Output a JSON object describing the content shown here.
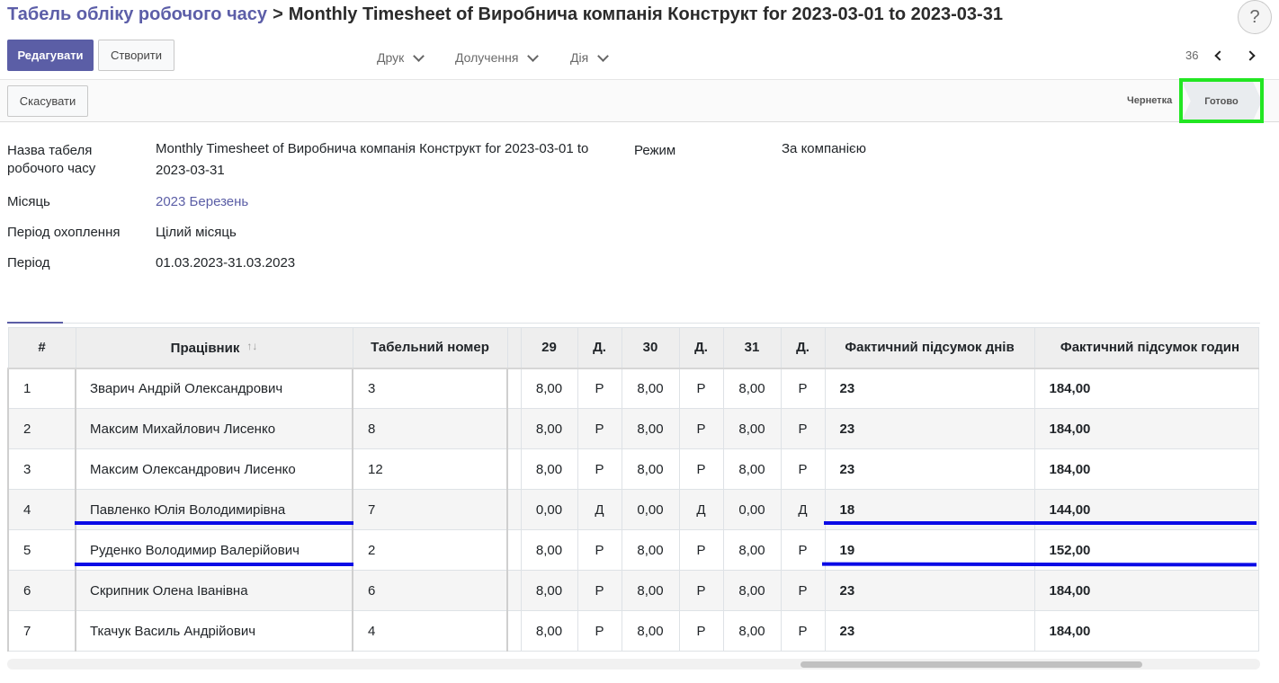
{
  "breadcrumb": {
    "parent": "Табель обліку робочого часу",
    "separator": ">",
    "current": "Monthly Timesheet of Виробнича компанія Конструкт for 2023-03-01 to 2023-03-31"
  },
  "help": {
    "label": "?"
  },
  "toolbar": {
    "edit_label": "Редагувати",
    "create_label": "Створити",
    "print_label": "Друк",
    "attachment_label": "Долучення",
    "action_label": "Дія"
  },
  "pager": {
    "count": "36"
  },
  "statusbar": {
    "cancel_label": "Скасувати",
    "draft_label": "Чернетка",
    "done_label": "Готово"
  },
  "form": {
    "name_label": "Назва табеля робочого часу",
    "name_value": "Monthly Timesheet of Виробнича компанія Конструкт for 2023-03-01 to 2023-03-31",
    "mode_label": "Режим",
    "mode_value": "За компанією",
    "month_label": "Місяць",
    "month_value": "2023 Березень",
    "coverage_label": "Період охоплення",
    "coverage_value": "Цілий місяць",
    "period_label": "Період",
    "period_value": "01.03.2023-31.03.2023"
  },
  "table": {
    "headers": {
      "num": "#",
      "employee": "Працівник",
      "tab_number": "Табельний номер",
      "d29": "29",
      "t29": "Д.",
      "d30": "30",
      "t30": "Д.",
      "d31": "31",
      "t31": "Д.",
      "days_total": "Фактичний підсумок днів",
      "hours_total": "Фактичний підсумок годин"
    },
    "rows": [
      {
        "num": "1",
        "employee": "Зварич Андрій Олександрович",
        "tab": "3",
        "d29": "8,00",
        "t29": "Р",
        "d30": "8,00",
        "t30": "Р",
        "d31": "8,00",
        "t31": "Р",
        "days": "23",
        "hours": "184,00"
      },
      {
        "num": "2",
        "employee": "Максим Михайлович Лисенко",
        "tab": "8",
        "d29": "8,00",
        "t29": "Р",
        "d30": "8,00",
        "t30": "Р",
        "d31": "8,00",
        "t31": "Р",
        "days": "23",
        "hours": "184,00"
      },
      {
        "num": "3",
        "employee": "Максим Олександрович Лисенко",
        "tab": "12",
        "d29": "8,00",
        "t29": "Р",
        "d30": "8,00",
        "t30": "Р",
        "d31": "8,00",
        "t31": "Р",
        "days": "23",
        "hours": "184,00"
      },
      {
        "num": "4",
        "employee": "Павленко Юлія Володимирівна",
        "tab": "7",
        "d29": "0,00",
        "t29": "Д",
        "d30": "0,00",
        "t30": "Д",
        "d31": "0,00",
        "t31": "Д",
        "days": "18",
        "hours": "144,00"
      },
      {
        "num": "5",
        "employee": "Руденко Володимир Валерійович",
        "tab": "2",
        "d29": "8,00",
        "t29": "Р",
        "d30": "8,00",
        "t30": "Р",
        "d31": "8,00",
        "t31": "Р",
        "days": "19",
        "hours": "152,00"
      },
      {
        "num": "6",
        "employee": "Скрипник Олена Іванівна",
        "tab": "6",
        "d29": "8,00",
        "t29": "Р",
        "d30": "8,00",
        "t30": "Р",
        "d31": "8,00",
        "t31": "Р",
        "days": "23",
        "hours": "184,00"
      },
      {
        "num": "7",
        "employee": "Ткачук Василь Андрійович",
        "tab": "4",
        "d29": "8,00",
        "t29": "Р",
        "d30": "8,00",
        "t30": "Р",
        "d31": "8,00",
        "t31": "Р",
        "days": "23",
        "hours": "184,00"
      }
    ]
  },
  "colors": {
    "accent": "#5b5ea6",
    "highlight_box": "#22e622",
    "annotation_underline": "#0a0ae6"
  }
}
